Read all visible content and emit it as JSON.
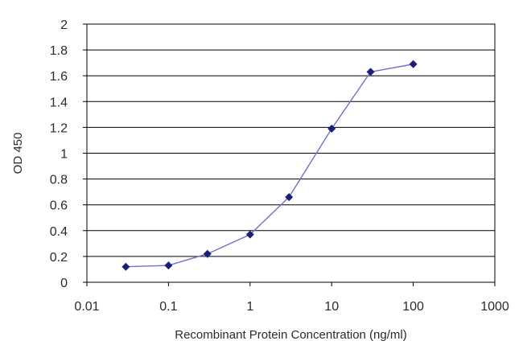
{
  "chart_data": {
    "type": "line",
    "title": "",
    "xlabel": "Recombinant Protein Concentration (ng/ml)",
    "ylabel": "OD 450",
    "x_scale": "log",
    "xlim": [
      0.01,
      1000
    ],
    "ylim": [
      0,
      2
    ],
    "x_ticks": [
      0.01,
      0.1,
      1,
      10,
      100,
      1000
    ],
    "x_tick_labels": [
      "0.01",
      "0.1",
      "1",
      "10",
      "100",
      "1000"
    ],
    "y_ticks": [
      0,
      0.2,
      0.4,
      0.6,
      0.8,
      1,
      1.2,
      1.4,
      1.6,
      1.8,
      2
    ],
    "y_tick_labels": [
      "0",
      "0.2",
      "0.4",
      "0.6",
      "0.8",
      "1",
      "1.2",
      "1.4",
      "1.6",
      "1.8",
      "2"
    ],
    "grid": "horizontal",
    "legend": "none",
    "series": [
      {
        "color": "#1b1f7a",
        "line_color": "#6f72c8",
        "x": [
          0.03,
          0.1,
          0.3,
          1,
          3,
          10,
          30,
          100
        ],
        "y": [
          0.12,
          0.13,
          0.22,
          0.37,
          0.66,
          1.19,
          1.63,
          1.69
        ]
      }
    ]
  }
}
